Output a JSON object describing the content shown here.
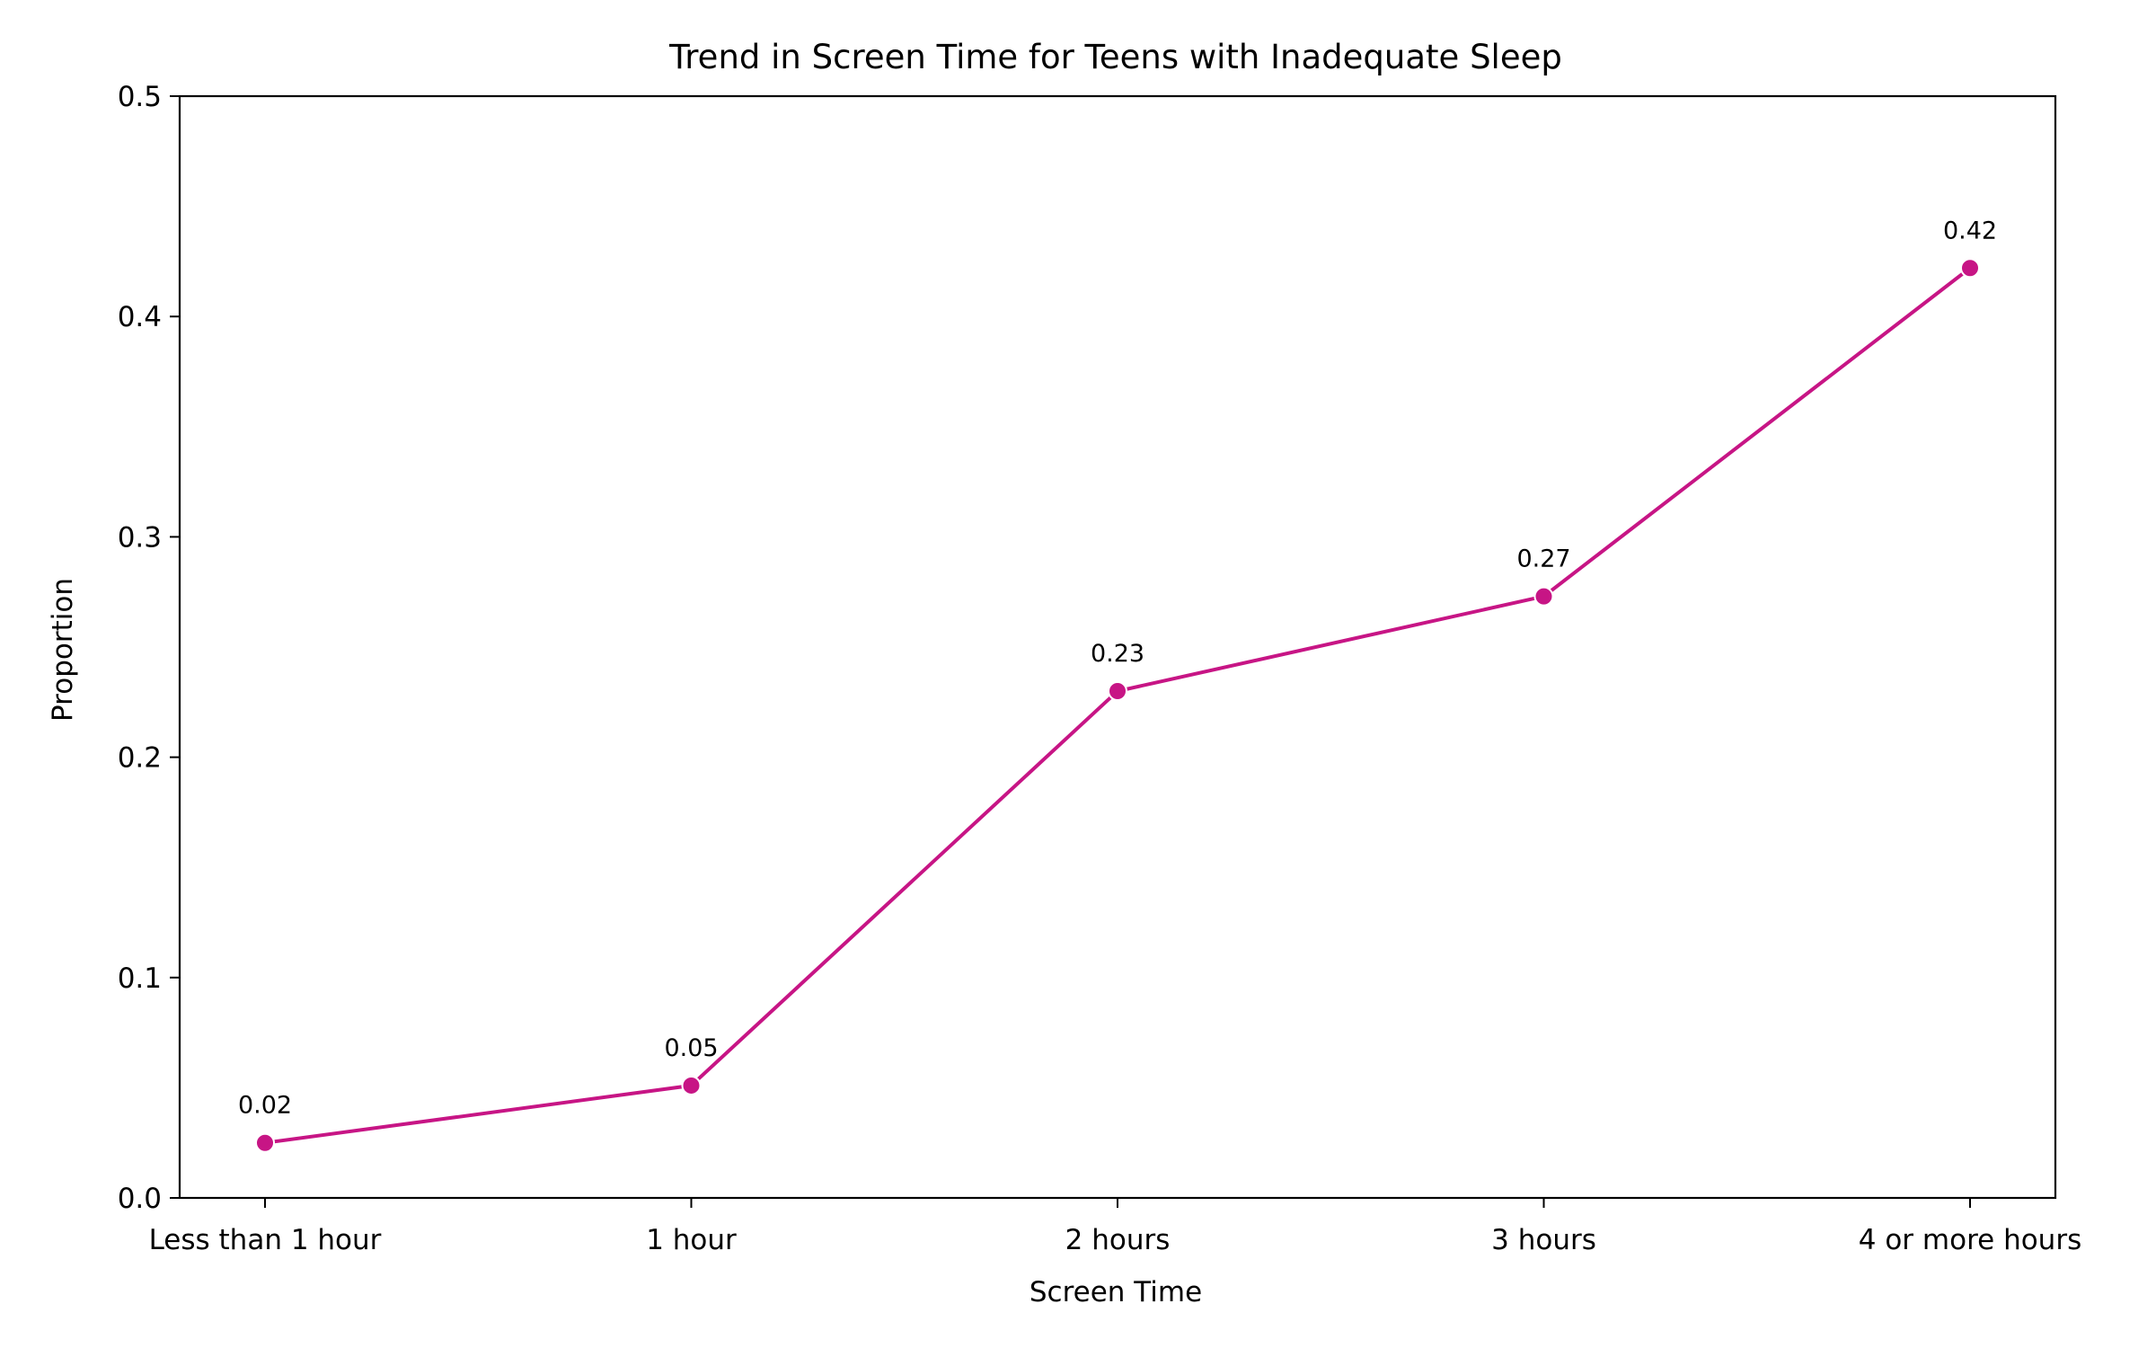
{
  "chart_data": {
    "type": "line",
    "title": "Trend in Screen Time for Teens with Inadequate Sleep",
    "xlabel": "Screen Time",
    "ylabel": "Proportion",
    "categories": [
      "Less than 1 hour",
      "1 hour",
      "2 hours",
      "3 hours",
      "4 or more hours"
    ],
    "series": [
      {
        "values": [
          0.025,
          0.051,
          0.23,
          0.273,
          0.422
        ],
        "data_labels": [
          "0.02",
          "0.05",
          "0.23",
          "0.27",
          "0.42"
        ],
        "color": "#C71585",
        "marker": "circle"
      }
    ],
    "ylim": [
      0,
      0.5
    ],
    "yticks": [
      "0.0",
      "0.1",
      "0.2",
      "0.3",
      "0.4",
      "0.5"
    ],
    "grid": false,
    "legend": "none"
  }
}
